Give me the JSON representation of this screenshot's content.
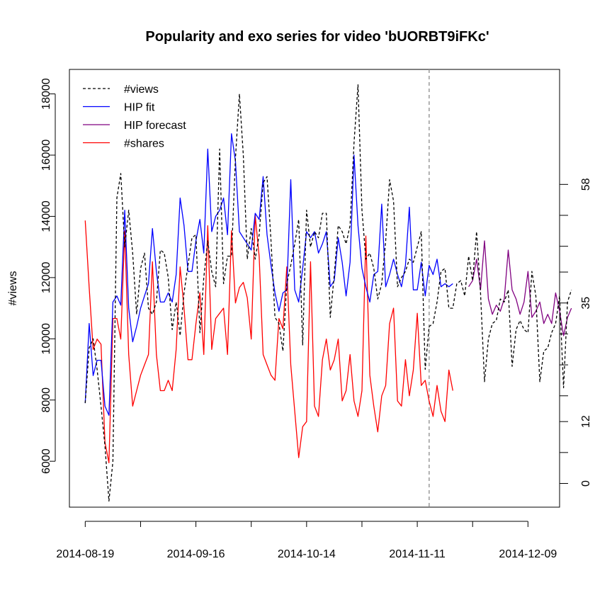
{
  "chart_data": {
    "type": "line",
    "title": "Popularity and exo series for video 'bUORBT9iFKc'",
    "xlabel": "",
    "ylabel": "#views",
    "x_start": "2014-08-19",
    "x_end": "2014-12-13",
    "forecast_start": "2014-11-14",
    "xlim": [
      "2014-08-15",
      "2014-12-17"
    ],
    "ylim": [
      4500,
      18800
    ],
    "xticks": [
      "2014-08-19",
      "2014-09-02",
      "2014-09-16",
      "2014-09-30",
      "2014-10-14",
      "2014-10-28",
      "2014-11-11",
      "2014-11-25",
      "2014-12-09"
    ],
    "xtick_labels": [
      "2014-08-19",
      "",
      "2014-09-16",
      "",
      "2014-10-14",
      "",
      "2014-11-11",
      "",
      "2014-12-09"
    ],
    "yticks": [
      6000,
      8000,
      10000,
      12000,
      14000,
      16000,
      18000
    ],
    "ytick_labels": [
      "6000",
      "8000",
      "10000",
      "12000",
      "14000",
      "16000",
      "18000"
    ],
    "right_axis": {
      "ylim": [
        -4.6,
        80.3
      ],
      "ticks": [
        0,
        6,
        12,
        17,
        23,
        29,
        35,
        41,
        46,
        52,
        58
      ],
      "tick_labels": [
        "0",
        "",
        "12",
        "",
        "",
        "",
        "35",
        "",
        "",
        "",
        "58"
      ]
    },
    "legend": {
      "position": "top-left",
      "entries": [
        {
          "label": "#views",
          "color": "#000000",
          "style": "dashed"
        },
        {
          "label": "HIP fit",
          "color": "#0000ff",
          "style": "solid"
        },
        {
          "label": "HIP forecast",
          "color": "#800080",
          "style": "solid"
        },
        {
          "label": "#shares",
          "color": "#ff0000",
          "style": "solid"
        }
      ]
    },
    "series": [
      {
        "name": "#views",
        "color": "#000000",
        "dashed": true,
        "values": [
          7900,
          9700,
          10000,
          9000,
          7800,
          6500,
          4700,
          6000,
          14600,
          15400,
          13000,
          14200,
          12800,
          10800,
          12300,
          12800,
          11000,
          10800,
          11200,
          12900,
          12800,
          12000,
          10300,
          11200,
          10100,
          11500,
          12400,
          13300,
          13400,
          10200,
          12000,
          13200,
          12200,
          11700,
          16200,
          11800,
          12700,
          12700,
          15900,
          18000,
          16000,
          12600,
          13600,
          12600,
          13400,
          15100,
          15300,
          13200,
          10700,
          10500,
          9600,
          11800,
          12400,
          13100,
          13900,
          9800,
          14200,
          13000,
          13500,
          13300,
          14100,
          14100,
          10700,
          12100,
          13700,
          13500,
          13100,
          13700,
          16400,
          18300,
          14200,
          12600,
          12800,
          12300,
          11300,
          11800,
          13200,
          15200,
          14500,
          11700,
          12000,
          12200,
          12600,
          12500,
          13000,
          13500,
          9000,
          10400,
          10500,
          11200,
          12200,
          12300,
          11000,
          11000,
          11800,
          11900,
          11400,
          12700,
          11900,
          13500,
          11500,
          8600,
          10000,
          10500,
          10600,
          11300,
          11200,
          11600,
          9100,
          10300,
          10600,
          10300,
          10200,
          12200,
          11400,
          8600,
          9600,
          9700,
          10200,
          10500,
          11400,
          8400,
          11200,
          11600
        ]
      },
      {
        "name": "HIP fit",
        "color": "#0000ff",
        "dashed": false,
        "values": [
          7900,
          10500,
          8800,
          9300,
          9300,
          7800,
          7500,
          11200,
          11400,
          11100,
          14200,
          11000,
          9900,
          10400,
          11000,
          11400,
          11800,
          13600,
          12200,
          11200,
          11200,
          11500,
          11200,
          12100,
          14600,
          13700,
          12200,
          12200,
          13200,
          13900,
          12800,
          16200,
          13500,
          14000,
          14200,
          14600,
          13400,
          16700,
          15800,
          13500,
          13300,
          13100,
          12900,
          14100,
          13900,
          15300,
          13400,
          12400,
          11500,
          10900,
          11500,
          11600,
          15200,
          11600,
          11200,
          12300,
          13500,
          13300,
          13500,
          12800,
          13100,
          13500,
          11700,
          11900,
          13300,
          12500,
          11400,
          12500,
          16000,
          13700,
          12300,
          11700,
          11200,
          12100,
          12200,
          14400,
          11700,
          12100,
          12600,
          12100,
          11700,
          12400,
          14300,
          11600,
          11600,
          12500,
          11400,
          12400,
          12100,
          12600,
          11700,
          11800,
          11700,
          11800
        ],
        "start_index": 0
      },
      {
        "name": "HIP forecast",
        "color": "#800080",
        "dashed": false,
        "values": [
          11700,
          11900,
          12600,
          11600,
          13200,
          11300,
          10800,
          11100,
          10900,
          11300,
          12900,
          11600,
          11300,
          10800,
          11200,
          12200,
          10700,
          10900,
          11200,
          10500,
          10800,
          10500,
          11500,
          10900,
          10100,
          10700,
          11000
        ],
        "start_index": 97
      },
      {
        "name": "#shares",
        "color": "#ff0000",
        "dashed": false,
        "axis": "right",
        "values": [
          51,
          38,
          26,
          28,
          27,
          8,
          4,
          32,
          32,
          28,
          49,
          25,
          15,
          18,
          21,
          23,
          25,
          43,
          25,
          18,
          18,
          20,
          18,
          26,
          42,
          34,
          24,
          24,
          31,
          37,
          25,
          50,
          26,
          32,
          33,
          34,
          25,
          49,
          35,
          38,
          39,
          36,
          28,
          52,
          44,
          25,
          23,
          21,
          20,
          32,
          30,
          42,
          23,
          14,
          5,
          11,
          12,
          43,
          15,
          13,
          24,
          28,
          22,
          24,
          28,
          16,
          18,
          25,
          16,
          13,
          18,
          48,
          21,
          15,
          10,
          17,
          19,
          31,
          34,
          16,
          15,
          24,
          17,
          22,
          33,
          19,
          20,
          16,
          13,
          19,
          14,
          12,
          22,
          18
        ]
      }
    ]
  }
}
